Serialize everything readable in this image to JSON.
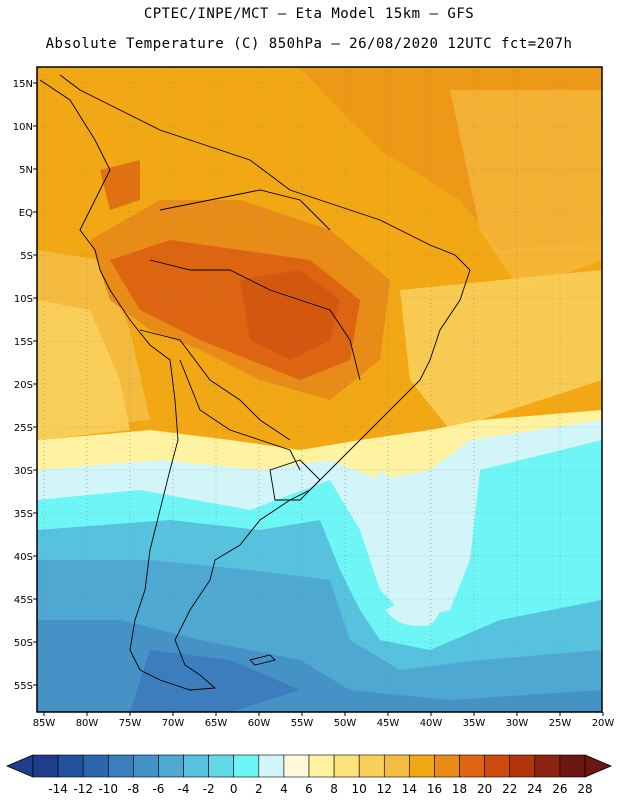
{
  "header": {
    "line1": "CPTEC/INPE/MCT –  Eta Model 15km – GFS",
    "line2": "Absolute Temperature (C) 850hPa – 26/08/2020 12UTC fct=207h"
  },
  "axes": {
    "lat_labels": [
      "15N",
      "10N",
      "5N",
      "EQ",
      "5S",
      "10S",
      "15S",
      "20S",
      "25S",
      "30S",
      "35S",
      "40S",
      "45S",
      "50S",
      "55S"
    ],
    "lon_labels": [
      "85W",
      "80W",
      "75W",
      "70W",
      "65W",
      "60W",
      "55W",
      "50W",
      "45W",
      "40W",
      "35W",
      "30W",
      "25W",
      "20W"
    ]
  },
  "colorbar": {
    "labels": [
      "-14",
      "-12",
      "-10",
      "-8",
      "-6",
      "-4",
      "-2",
      "0",
      "2",
      "4",
      "6",
      "8",
      "10",
      "12",
      "14",
      "16",
      "18",
      "20",
      "22",
      "24",
      "26",
      "28"
    ],
    "colors": [
      "#1e3e8c",
      "#24519e",
      "#2e66ae",
      "#3b7dbd",
      "#4592c7",
      "#4ea8d2",
      "#56c2de",
      "#62d8ea",
      "#6ef5f5",
      "#d2f5fa",
      "#fff8dc",
      "#fff2a0",
      "#fce27a",
      "#f9d05c",
      "#f5bc42",
      "#f2a815",
      "#e98b17",
      "#dd6410",
      "#cc4a0e",
      "#b0350d",
      "#8c2411",
      "#6e1612"
    ]
  },
  "map": {
    "legend": "Absolute Temperature (C) 850hPa"
  }
}
